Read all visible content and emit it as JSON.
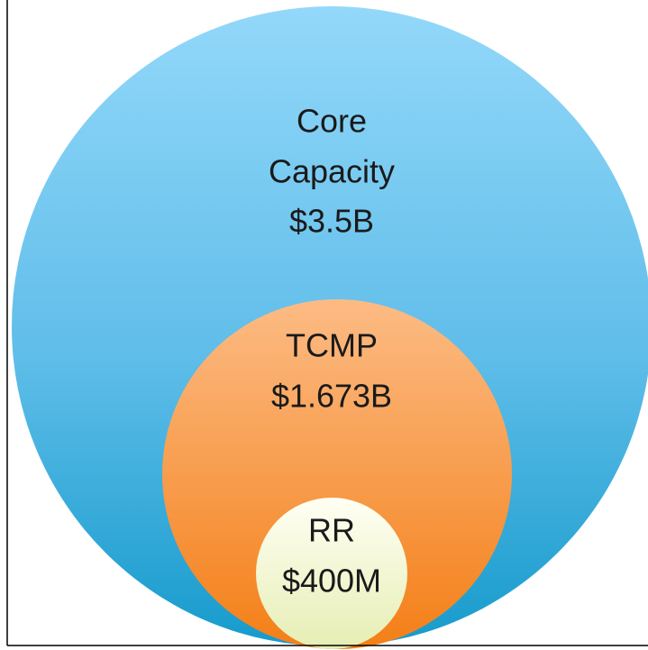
{
  "nodes": [
    {
      "label": [
        "Core",
        "Capacity"
      ],
      "value": "$3.5B"
    },
    {
      "label": [
        "TCMP"
      ],
      "value": "$1.673B"
    },
    {
      "label": [
        "RR"
      ],
      "value": "$400M"
    }
  ]
}
